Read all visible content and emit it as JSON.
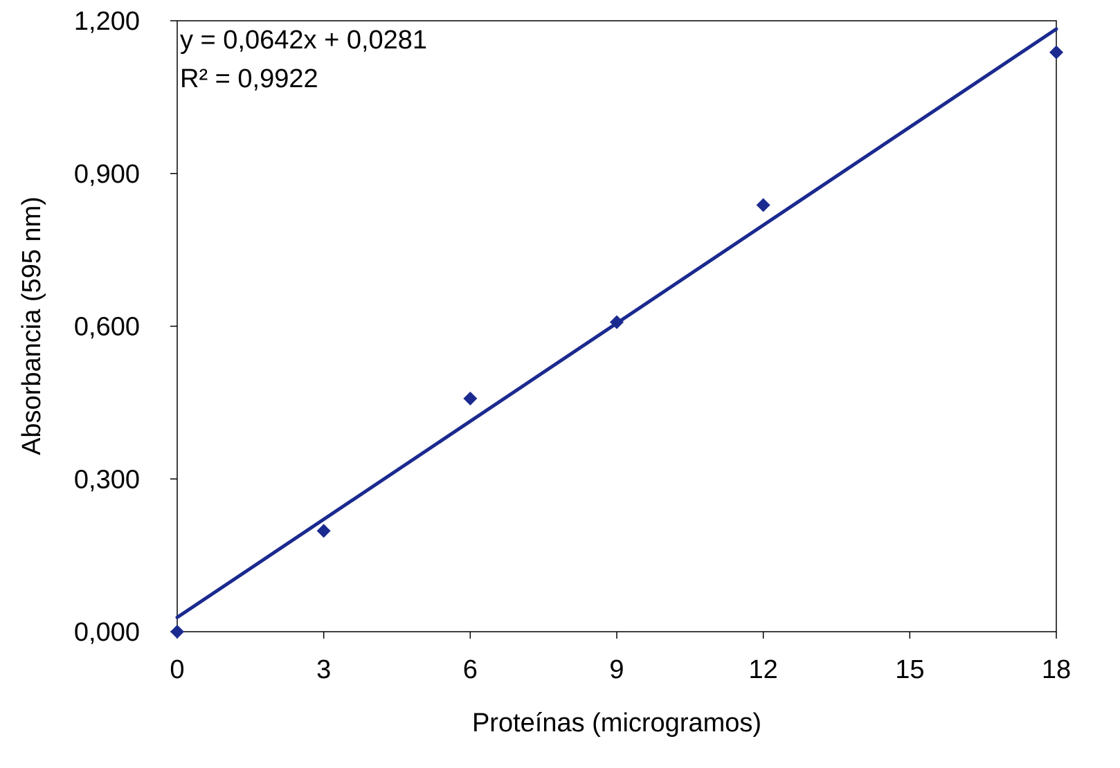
{
  "chart_data": {
    "type": "scatter",
    "title": "",
    "xlabel": "Proteínas (microgramos)",
    "ylabel": "Absorbancia (595 nm)",
    "xlim": [
      0,
      18
    ],
    "ylim": [
      0,
      1.2
    ],
    "x_ticks": [
      0,
      3,
      6,
      9,
      12,
      15,
      18
    ],
    "x_tick_labels": [
      "0",
      "3",
      "6",
      "9",
      "12",
      "15",
      "18"
    ],
    "y_ticks": [
      0,
      0.3,
      0.6,
      0.9,
      1.2
    ],
    "y_tick_labels": [
      "0,000",
      "0,300",
      "0,600",
      "0,900",
      "1,200"
    ],
    "grid": false,
    "series": [
      {
        "marker": "diamond",
        "color": "#1B2A8F",
        "x": [
          0,
          3,
          6,
          9,
          12,
          18
        ],
        "y": [
          0.0,
          0.198,
          0.458,
          0.608,
          0.838,
          1.138
        ]
      }
    ],
    "trendline": {
      "type": "linear",
      "slope": 0.0642,
      "intercept": 0.0281,
      "x_range": [
        0,
        18
      ],
      "color": "#1B2A8F"
    },
    "annotations": {
      "equation": "y = 0,0642x + 0,0281",
      "r_squared": "R² = 0,9922"
    }
  }
}
